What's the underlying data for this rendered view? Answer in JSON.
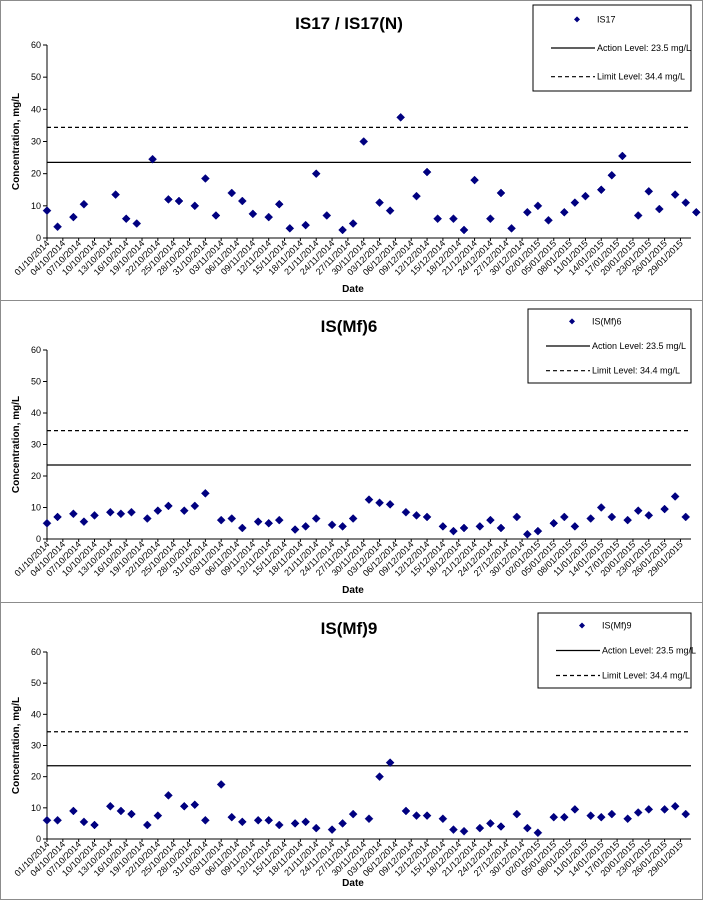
{
  "chart_data": [
    {
      "type": "scatter",
      "title": "IS17 / IS17(N)",
      "xlabel": "Date",
      "ylabel": "Concentration, mg/L",
      "ylim": [
        0,
        60
      ],
      "yticks": [
        "0",
        "10",
        "20",
        "30",
        "40",
        "50",
        "60"
      ],
      "xlim": [
        "01/10/2014",
        "31/01/2015"
      ],
      "xtick_labels": [
        "01/10/2014",
        "04/10/2014",
        "07/10/2014",
        "10/10/2014",
        "13/10/2014",
        "16/10/2014",
        "19/10/2014",
        "22/10/2014",
        "25/10/2014",
        "28/10/2014",
        "31/10/2014",
        "03/11/2014",
        "06/11/2014",
        "09/11/2014",
        "12/11/2014",
        "15/11/2014",
        "18/11/2014",
        "21/11/2014",
        "24/11/2014",
        "27/11/2014",
        "30/11/2014",
        "03/12/2014",
        "06/12/2014",
        "09/12/2014",
        "12/12/2014",
        "15/12/2014",
        "18/12/2014",
        "21/12/2014",
        "24/12/2014",
        "27/12/2014",
        "30/12/2014",
        "02/01/2015",
        "05/01/2015",
        "08/01/2015",
        "11/01/2015",
        "14/01/2015",
        "17/01/2015",
        "20/01/2015",
        "23/01/2015",
        "26/01/2015",
        "29/01/2015"
      ],
      "legend_placement": "top-right",
      "series": [
        {
          "name": "IS17",
          "color": "#000080",
          "marker": "diamond",
          "points": [
            {
              "x": "01/10/2014",
              "y": 8.5
            },
            {
              "x": "03/10/2014",
              "y": 3.5
            },
            {
              "x": "06/10/2014",
              "y": 6.5
            },
            {
              "x": "08/10/2014",
              "y": 10.5
            },
            {
              "x": "14/10/2014",
              "y": 13.5
            },
            {
              "x": "16/10/2014",
              "y": 6
            },
            {
              "x": "18/10/2014",
              "y": 4.5
            },
            {
              "x": "21/10/2014",
              "y": 24.5
            },
            {
              "x": "24/10/2014",
              "y": 12
            },
            {
              "x": "26/10/2014",
              "y": 11.5
            },
            {
              "x": "29/10/2014",
              "y": 10
            },
            {
              "x": "31/10/2014",
              "y": 18.5
            },
            {
              "x": "02/11/2014",
              "y": 7
            },
            {
              "x": "05/11/2014",
              "y": 14
            },
            {
              "x": "07/11/2014",
              "y": 11.5
            },
            {
              "x": "09/11/2014",
              "y": 7.5
            },
            {
              "x": "12/11/2014",
              "y": 6.5
            },
            {
              "x": "14/11/2014",
              "y": 10.5
            },
            {
              "x": "16/11/2014",
              "y": 3
            },
            {
              "x": "19/11/2014",
              "y": 4
            },
            {
              "x": "21/11/2014",
              "y": 20
            },
            {
              "x": "23/11/2014",
              "y": 7
            },
            {
              "x": "26/11/2014",
              "y": 2.5
            },
            {
              "x": "28/11/2014",
              "y": 4.5
            },
            {
              "x": "30/11/2014",
              "y": 30
            },
            {
              "x": "03/12/2014",
              "y": 11
            },
            {
              "x": "05/12/2014",
              "y": 8.5
            },
            {
              "x": "07/12/2014",
              "y": 37.5
            },
            {
              "x": "10/12/2014",
              "y": 13
            },
            {
              "x": "12/12/2014",
              "y": 20.5
            },
            {
              "x": "14/12/2014",
              "y": 6
            },
            {
              "x": "17/12/2014",
              "y": 6
            },
            {
              "x": "19/12/2014",
              "y": 2.5
            },
            {
              "x": "21/12/2014",
              "y": 18
            },
            {
              "x": "24/12/2014",
              "y": 6
            },
            {
              "x": "26/12/2014",
              "y": 14
            },
            {
              "x": "28/12/2014",
              "y": 3
            },
            {
              "x": "31/12/2014",
              "y": 8
            },
            {
              "x": "02/01/2015",
              "y": 10
            },
            {
              "x": "04/01/2015",
              "y": 5.5
            },
            {
              "x": "07/01/2015",
              "y": 8
            },
            {
              "x": "09/01/2015",
              "y": 11
            },
            {
              "x": "11/01/2015",
              "y": 13
            },
            {
              "x": "14/01/2015",
              "y": 15
            },
            {
              "x": "16/01/2015",
              "y": 19.5
            },
            {
              "x": "18/01/2015",
              "y": 25.5
            },
            {
              "x": "21/01/2015",
              "y": 7
            },
            {
              "x": "23/01/2015",
              "y": 14.5
            },
            {
              "x": "25/01/2015",
              "y": 9
            },
            {
              "x": "28/01/2015",
              "y": 13.5
            },
            {
              "x": "30/01/2015",
              "y": 11
            },
            {
              "x": "01/02/2015",
              "y": 8
            }
          ]
        }
      ],
      "reference_lines": [
        {
          "label": "Action Level: 23.5 mg/L",
          "value": 23.5,
          "style": "solid"
        },
        {
          "label": "Limit Level: 34.4 mg/L",
          "value": 34.4,
          "style": "dashed"
        }
      ]
    },
    {
      "type": "scatter",
      "title": "IS(Mf)6",
      "xlabel": "Date",
      "ylabel": "Concentration, mg/L",
      "ylim": [
        0,
        60
      ],
      "yticks": [
        "0",
        "10",
        "20",
        "30",
        "40",
        "50",
        "60"
      ],
      "xlim": [
        "01/10/2014",
        "31/01/2015"
      ],
      "xtick_labels": [
        "01/10/2014",
        "04/10/2014",
        "07/10/2014",
        "10/10/2014",
        "13/10/2014",
        "16/10/2014",
        "19/10/2014",
        "22/10/2014",
        "25/10/2014",
        "28/10/2014",
        "31/10/2014",
        "03/11/2014",
        "06/11/2014",
        "09/11/2014",
        "12/11/2014",
        "15/11/2014",
        "18/11/2014",
        "21/11/2014",
        "24/11/2014",
        "27/11/2014",
        "30/11/2014",
        "03/12/2014",
        "06/12/2014",
        "09/12/2014",
        "12/12/2014",
        "15/12/2014",
        "18/12/2014",
        "21/12/2014",
        "24/12/2014",
        "27/12/2014",
        "30/12/2014",
        "02/01/2015",
        "05/01/2015",
        "08/01/2015",
        "11/01/2015",
        "14/01/2015",
        "17/01/2015",
        "20/01/2015",
        "23/01/2015",
        "26/01/2015",
        "29/01/2015"
      ],
      "legend_placement": "top-right",
      "series": [
        {
          "name": "IS(Mf)6",
          "color": "#000080",
          "marker": "diamond",
          "points": [
            {
              "x": "01/10/2014",
              "y": 5
            },
            {
              "x": "03/10/2014",
              "y": 7
            },
            {
              "x": "06/10/2014",
              "y": 8
            },
            {
              "x": "08/10/2014",
              "y": 5.5
            },
            {
              "x": "10/10/2014",
              "y": 7.5
            },
            {
              "x": "13/10/2014",
              "y": 8.5
            },
            {
              "x": "15/10/2014",
              "y": 8
            },
            {
              "x": "17/10/2014",
              "y": 8.5
            },
            {
              "x": "20/10/2014",
              "y": 6.5
            },
            {
              "x": "22/10/2014",
              "y": 9
            },
            {
              "x": "24/10/2014",
              "y": 10.5
            },
            {
              "x": "27/10/2014",
              "y": 9
            },
            {
              "x": "29/10/2014",
              "y": 10.5
            },
            {
              "x": "31/10/2014",
              "y": 14.5
            },
            {
              "x": "03/11/2014",
              "y": 6
            },
            {
              "x": "05/11/2014",
              "y": 6.5
            },
            {
              "x": "07/11/2014",
              "y": 3.5
            },
            {
              "x": "10/11/2014",
              "y": 5.5
            },
            {
              "x": "12/11/2014",
              "y": 5
            },
            {
              "x": "14/11/2014",
              "y": 6
            },
            {
              "x": "17/11/2014",
              "y": 3
            },
            {
              "x": "19/11/2014",
              "y": 4
            },
            {
              "x": "21/11/2014",
              "y": 6.5
            },
            {
              "x": "24/11/2014",
              "y": 4.5
            },
            {
              "x": "26/11/2014",
              "y": 4
            },
            {
              "x": "28/11/2014",
              "y": 6.5
            },
            {
              "x": "01/12/2014",
              "y": 12.5
            },
            {
              "x": "03/12/2014",
              "y": 11.5
            },
            {
              "x": "05/12/2014",
              "y": 11
            },
            {
              "x": "08/12/2014",
              "y": 8.5
            },
            {
              "x": "10/12/2014",
              "y": 7.5
            },
            {
              "x": "12/12/2014",
              "y": 7
            },
            {
              "x": "15/12/2014",
              "y": 4
            },
            {
              "x": "17/12/2014",
              "y": 2.5
            },
            {
              "x": "19/12/2014",
              "y": 3.5
            },
            {
              "x": "22/12/2014",
              "y": 4
            },
            {
              "x": "24/12/2014",
              "y": 6
            },
            {
              "x": "26/12/2014",
              "y": 3.5
            },
            {
              "x": "29/12/2014",
              "y": 7
            },
            {
              "x": "31/12/2014",
              "y": 1.5
            },
            {
              "x": "02/01/2015",
              "y": 2.5
            },
            {
              "x": "05/01/2015",
              "y": 5
            },
            {
              "x": "07/01/2015",
              "y": 7
            },
            {
              "x": "09/01/2015",
              "y": 4
            },
            {
              "x": "12/01/2015",
              "y": 6.5
            },
            {
              "x": "14/01/2015",
              "y": 10
            },
            {
              "x": "16/01/2015",
              "y": 7
            },
            {
              "x": "19/01/2015",
              "y": 6
            },
            {
              "x": "21/01/2015",
              "y": 9
            },
            {
              "x": "23/01/2015",
              "y": 7.5
            },
            {
              "x": "26/01/2015",
              "y": 9.5
            },
            {
              "x": "28/01/2015",
              "y": 13.5
            },
            {
              "x": "30/01/2015",
              "y": 7
            }
          ]
        }
      ],
      "reference_lines": [
        {
          "label": "Action Level: 23.5 mg/L",
          "value": 23.5,
          "style": "solid"
        },
        {
          "label": "Limit Level: 34.4 mg/L",
          "value": 34.4,
          "style": "dashed"
        }
      ]
    },
    {
      "type": "scatter",
      "title": "IS(Mf)9",
      "xlabel": "Date",
      "ylabel": "Concentration, mg/L",
      "ylim": [
        0,
        60
      ],
      "yticks": [
        "0",
        "10",
        "20",
        "30",
        "40",
        "50",
        "60"
      ],
      "xlim": [
        "01/10/2014",
        "31/01/2015"
      ],
      "xtick_labels": [
        "01/10/2014",
        "04/10/2014",
        "07/10/2014",
        "10/10/2014",
        "13/10/2014",
        "16/10/2014",
        "19/10/2014",
        "22/10/2014",
        "25/10/2014",
        "28/10/2014",
        "31/10/2014",
        "03/11/2014",
        "06/11/2014",
        "09/11/2014",
        "12/11/2014",
        "15/11/2014",
        "18/11/2014",
        "21/11/2014",
        "24/11/2014",
        "27/11/2014",
        "30/11/2014",
        "03/12/2014",
        "06/12/2014",
        "09/12/2014",
        "12/12/2014",
        "15/12/2014",
        "18/12/2014",
        "21/12/2014",
        "24/12/2014",
        "27/12/2014",
        "30/12/2014",
        "02/01/2015",
        "05/01/2015",
        "08/01/2015",
        "11/01/2015",
        "14/01/2015",
        "17/01/2015",
        "20/01/2015",
        "23/01/2015",
        "26/01/2015",
        "29/01/2015"
      ],
      "legend_placement": "top-right",
      "series": [
        {
          "name": "IS(Mf)9",
          "color": "#000080",
          "marker": "diamond",
          "points": [
            {
              "x": "01/10/2014",
              "y": 6
            },
            {
              "x": "03/10/2014",
              "y": 6
            },
            {
              "x": "06/10/2014",
              "y": 9
            },
            {
              "x": "08/10/2014",
              "y": 5.5
            },
            {
              "x": "10/10/2014",
              "y": 4.5
            },
            {
              "x": "13/10/2014",
              "y": 10.5
            },
            {
              "x": "15/10/2014",
              "y": 9
            },
            {
              "x": "17/10/2014",
              "y": 8
            },
            {
              "x": "20/10/2014",
              "y": 4.5
            },
            {
              "x": "22/10/2014",
              "y": 7.5
            },
            {
              "x": "24/10/2014",
              "y": 14
            },
            {
              "x": "27/10/2014",
              "y": 10.5
            },
            {
              "x": "29/10/2014",
              "y": 11
            },
            {
              "x": "31/10/2014",
              "y": 6
            },
            {
              "x": "03/11/2014",
              "y": 17.5
            },
            {
              "x": "05/11/2014",
              "y": 7
            },
            {
              "x": "07/11/2014",
              "y": 5.5
            },
            {
              "x": "10/11/2014",
              "y": 6
            },
            {
              "x": "12/11/2014",
              "y": 6
            },
            {
              "x": "14/11/2014",
              "y": 4.5
            },
            {
              "x": "17/11/2014",
              "y": 5
            },
            {
              "x": "19/11/2014",
              "y": 5.5
            },
            {
              "x": "21/11/2014",
              "y": 3.5
            },
            {
              "x": "24/11/2014",
              "y": 3
            },
            {
              "x": "26/11/2014",
              "y": 5
            },
            {
              "x": "28/11/2014",
              "y": 8
            },
            {
              "x": "01/12/2014",
              "y": 6.5
            },
            {
              "x": "03/12/2014",
              "y": 20
            },
            {
              "x": "05/12/2014",
              "y": 24.5
            },
            {
              "x": "08/12/2014",
              "y": 9
            },
            {
              "x": "10/12/2014",
              "y": 7.5
            },
            {
              "x": "12/12/2014",
              "y": 7.5
            },
            {
              "x": "15/12/2014",
              "y": 6.5
            },
            {
              "x": "17/12/2014",
              "y": 3
            },
            {
              "x": "19/12/2014",
              "y": 2.5
            },
            {
              "x": "22/12/2014",
              "y": 3.5
            },
            {
              "x": "24/12/2014",
              "y": 5
            },
            {
              "x": "26/12/2014",
              "y": 4
            },
            {
              "x": "29/12/2014",
              "y": 8
            },
            {
              "x": "31/12/2014",
              "y": 3.5
            },
            {
              "x": "02/01/2015",
              "y": 2
            },
            {
              "x": "05/01/2015",
              "y": 7
            },
            {
              "x": "07/01/2015",
              "y": 7
            },
            {
              "x": "09/01/2015",
              "y": 9.5
            },
            {
              "x": "12/01/2015",
              "y": 7.5
            },
            {
              "x": "14/01/2015",
              "y": 7
            },
            {
              "x": "16/01/2015",
              "y": 8
            },
            {
              "x": "19/01/2015",
              "y": 6.5
            },
            {
              "x": "21/01/2015",
              "y": 8.5
            },
            {
              "x": "23/01/2015",
              "y": 9.5
            },
            {
              "x": "26/01/2015",
              "y": 9.5
            },
            {
              "x": "28/01/2015",
              "y": 10.5
            },
            {
              "x": "30/01/2015",
              "y": 8
            }
          ]
        }
      ],
      "reference_lines": [
        {
          "label": "Action Level: 23.5 mg/L",
          "value": 23.5,
          "style": "solid"
        },
        {
          "label": "Limit Level: 34.4 mg/L",
          "value": 34.4,
          "style": "dashed"
        }
      ]
    }
  ]
}
